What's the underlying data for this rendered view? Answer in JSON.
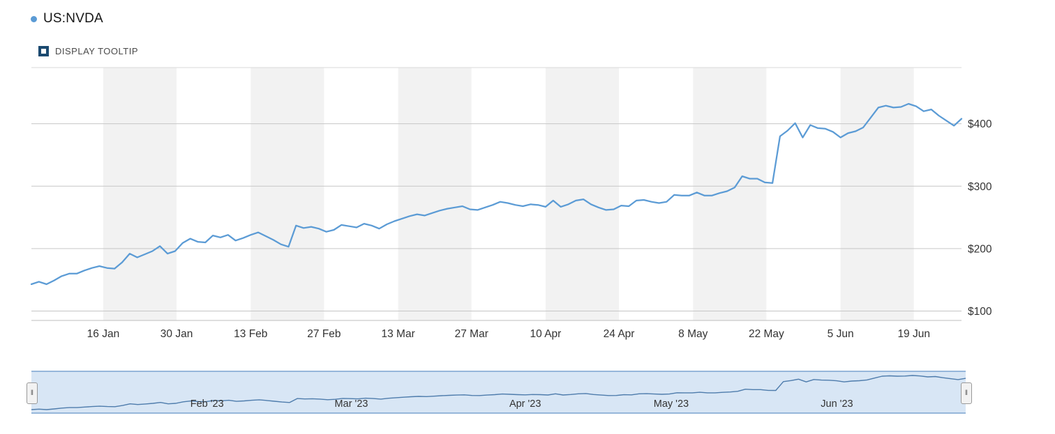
{
  "legend": {
    "series_label": "US:NVDA"
  },
  "controls": {
    "display_tooltip_label": "DISPLAY TOOLTIP",
    "checked": true
  },
  "navigator_handles": {
    "glyph": "‖"
  },
  "chart_data": {
    "type": "line",
    "title": "",
    "xlabel": "",
    "ylabel": "",
    "y_axis_position": "right",
    "legend_position": "top-left",
    "grid": true,
    "plot_band_color": "#f2f2f2",
    "ylim": [
      85,
      490
    ],
    "y_ticks": {
      "labels": [
        "$100",
        "$200",
        "$300",
        "$400"
      ],
      "values": [
        100,
        200,
        300,
        400
      ]
    },
    "x_ticks": {
      "labels": [
        "16 Jan",
        "30 Jan",
        "13 Feb",
        "27 Feb",
        "13 Mar",
        "27 Mar",
        "10 Apr",
        "24 Apr",
        "8 May",
        "22 May",
        "5 Jun",
        "19 Jun"
      ],
      "indices": [
        9.5,
        19.2,
        29,
        38.7,
        48.5,
        58.2,
        68,
        77.7,
        87.5,
        97.2,
        107,
        116.7
      ]
    },
    "series": [
      {
        "name": "US:NVDA",
        "color": "#5b9bd5",
        "values": [
          143,
          147,
          143,
          149,
          156,
          160,
          160,
          165,
          169,
          172,
          169,
          168,
          178,
          192,
          186,
          191,
          196,
          204,
          192,
          196,
          209,
          216,
          211,
          210,
          221,
          218,
          222,
          213,
          217,
          222,
          226,
          220,
          214,
          207,
          203,
          237,
          233,
          235,
          232,
          227,
          230,
          238,
          236,
          234,
          240,
          237,
          232,
          239,
          244,
          248,
          252,
          255,
          253,
          257,
          261,
          264,
          266,
          268,
          263,
          262,
          266,
          270,
          275,
          273,
          270,
          268,
          271,
          270,
          267,
          277,
          267,
          271,
          277,
          279,
          271,
          266,
          262,
          263,
          269,
          268,
          277,
          278,
          275,
          273,
          275,
          286,
          285,
          285,
          290,
          285,
          285,
          289,
          292,
          298,
          316,
          312,
          312,
          306,
          305,
          380,
          389,
          401,
          378,
          398,
          393,
          392,
          387,
          378,
          385,
          388,
          394,
          410,
          426,
          429,
          426,
          427,
          432,
          428,
          420,
          423,
          413,
          405,
          397,
          408
        ]
      }
    ],
    "navigator": {
      "selected_range": "full",
      "selection_fill": "#d8e6f5",
      "border_color": "#7aa4d0",
      "line_color": "#4e7cac",
      "month_labels": [
        {
          "label": "Feb '23",
          "index": 20
        },
        {
          "label": "Mar '23",
          "index": 39
        },
        {
          "label": "Apr '23",
          "index": 62
        },
        {
          "label": "May '23",
          "index": 81
        },
        {
          "label": "Jun '23",
          "index": 103
        }
      ]
    }
  }
}
